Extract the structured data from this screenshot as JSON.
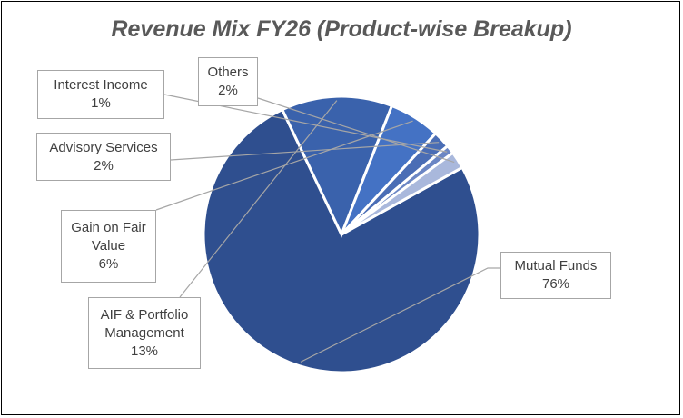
{
  "chart_data": {
    "type": "pie",
    "title": "Revenue Mix FY26 (Product-wise Breakup)",
    "slices": [
      {
        "name": "Mutual Funds",
        "value": 76,
        "label_lines": [
          "Mutual Funds"
        ],
        "value_label": "76%",
        "color": "#2f4f8f"
      },
      {
        "name": "AIF & Portfolio Management",
        "value": 13,
        "label_lines": [
          "AIF & Portfolio",
          "Management"
        ],
        "value_label": "13%",
        "color": "#3a62ac"
      },
      {
        "name": "Gain on Fair Value",
        "value": 6,
        "label_lines": [
          "Gain on Fair",
          "Value"
        ],
        "value_label": "6%",
        "color": "#4472c4"
      },
      {
        "name": "Advisory Services",
        "value": 2,
        "label_lines": [
          "Advisory Services"
        ],
        "value_label": "2%",
        "color": "#4a6db5"
      },
      {
        "name": "Interest Income",
        "value": 1,
        "label_lines": [
          "Interest Income"
        ],
        "value_label": "1%",
        "color": "#6b86c4"
      },
      {
        "name": "Others",
        "value": 2,
        "label_lines": [
          "Others"
        ],
        "value_label": "2%",
        "color": "#a9b8dc"
      }
    ],
    "legend": "none",
    "labels": "callouts"
  }
}
